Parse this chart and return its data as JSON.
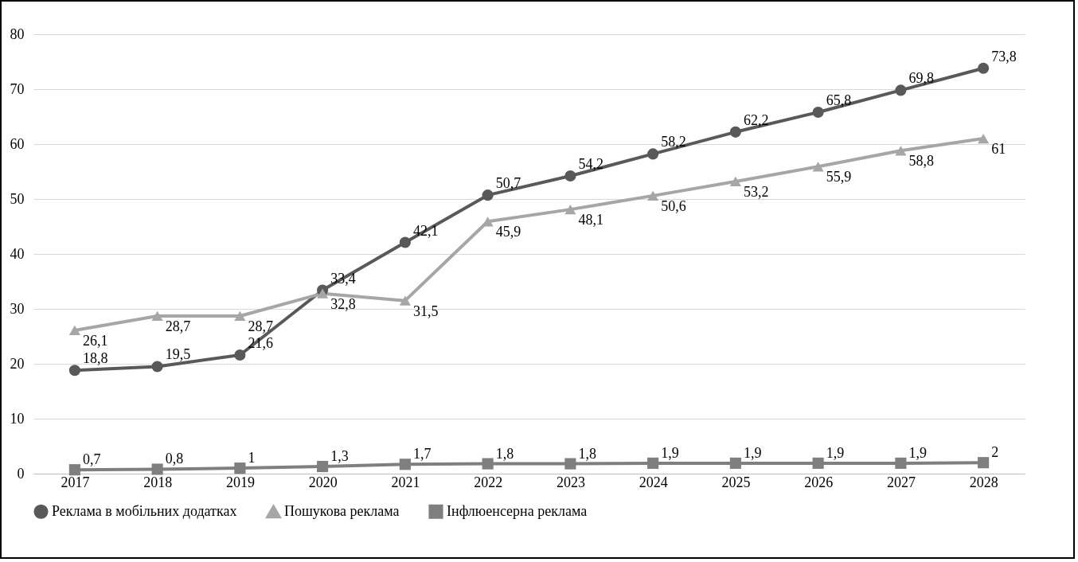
{
  "chart_data": {
    "type": "line",
    "categories": [
      "2017",
      "2018",
      "2019",
      "2020",
      "2021",
      "2022",
      "2023",
      "2024",
      "2025",
      "2026",
      "2027",
      "2028"
    ],
    "series": [
      {
        "name": "Реклама в мобільних додатках",
        "color": "#595959",
        "marker": "circle",
        "values": [
          18.8,
          19.5,
          21.6,
          33.4,
          42.1,
          50.7,
          54.2,
          58.2,
          62.2,
          65.8,
          69.8,
          73.8
        ],
        "value_labels": [
          "18,8",
          "19,5",
          "21,6",
          "33,4",
          "42,1",
          "50,7",
          "54,2",
          "58,2",
          "62,2",
          "65,8",
          "69,8",
          "73,8"
        ]
      },
      {
        "name": "Пошукова реклама",
        "color": "#a6a6a6",
        "marker": "triangle",
        "values": [
          26.1,
          28.7,
          28.7,
          32.8,
          31.5,
          45.9,
          48.1,
          50.6,
          53.2,
          55.9,
          58.8,
          61
        ],
        "value_labels": [
          "26,1",
          "28,7",
          "28,7",
          "32,8",
          "31,5",
          "45,9",
          "48,1",
          "50,6",
          "53,2",
          "55,9",
          "58,8",
          "61"
        ]
      },
      {
        "name": "Інфлюенсерна реклама",
        "color": "#7f7f7f",
        "marker": "square",
        "values": [
          0.7,
          0.8,
          1,
          1.3,
          1.7,
          1.8,
          1.8,
          1.9,
          1.9,
          1.9,
          1.9,
          2
        ],
        "value_labels": [
          "0,7",
          "0,8",
          "1",
          "1,3",
          "1,7",
          "1,8",
          "1,8",
          "1,9",
          "1,9",
          "1,9",
          "1,9",
          "2"
        ]
      }
    ],
    "ylim": [
      0,
      80
    ],
    "yticks": [
      0,
      10,
      20,
      30,
      40,
      50,
      60,
      70,
      80
    ],
    "grid": "y",
    "legend": "bottom"
  }
}
